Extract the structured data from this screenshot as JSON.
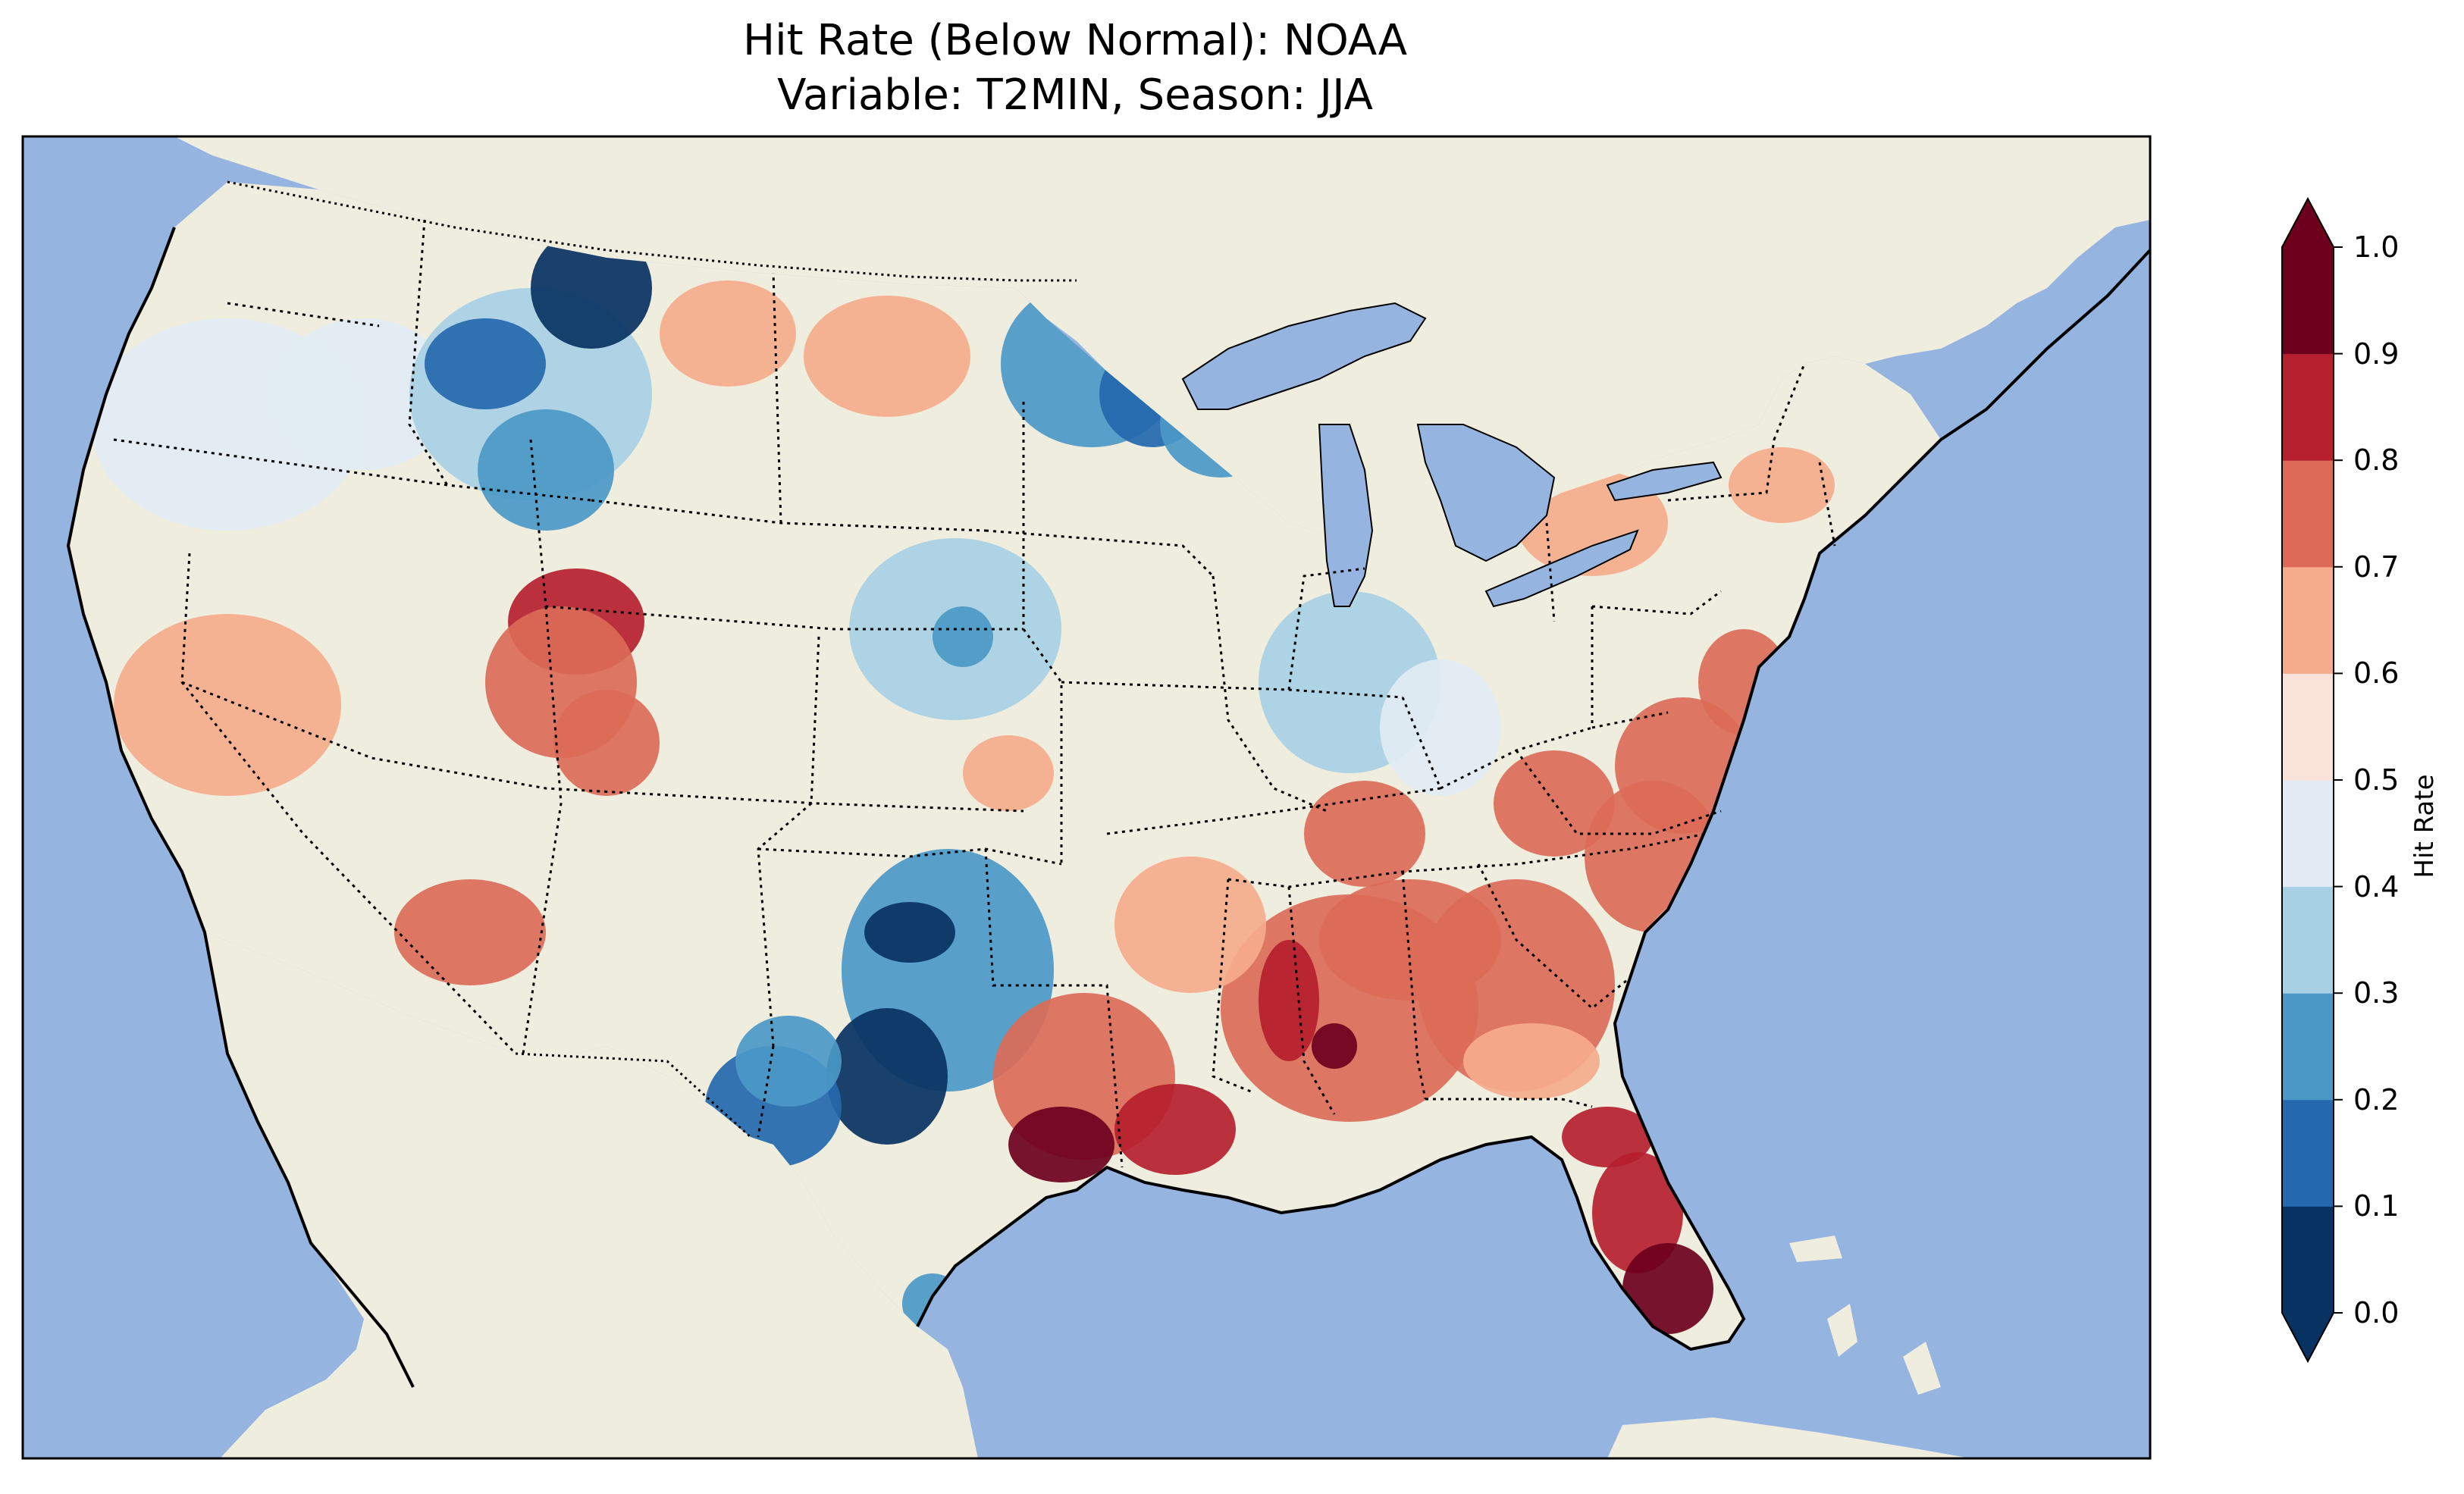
{
  "title": {
    "line1": "Hit Rate (Below Normal): NOAA",
    "line2": "Variable: T2MIN, Season: JJA"
  },
  "colors": {
    "ocean": "#96b4e0",
    "land": "#efedde",
    "coastline": "#000000",
    "state_border": "#000000"
  },
  "colorbar": {
    "label": "Hit Rate",
    "ticks": [
      "0.0",
      "0.1",
      "0.2",
      "0.3",
      "0.4",
      "0.5",
      "0.6",
      "0.7",
      "0.8",
      "0.9",
      "1.0"
    ],
    "bins": [
      {
        "range": [
          0.0,
          0.1
        ],
        "color": "#083262"
      },
      {
        "range": [
          0.1,
          0.2
        ],
        "color": "#2468ad"
      },
      {
        "range": [
          0.2,
          0.3
        ],
        "color": "#4b98c7"
      },
      {
        "range": [
          0.3,
          0.4
        ],
        "color": "#a8d0e4"
      },
      {
        "range": [
          0.4,
          0.5
        ],
        "color": "#e2ebf3"
      },
      {
        "range": [
          0.5,
          0.6
        ],
        "color": "#f9e3d9"
      },
      {
        "range": [
          0.6,
          0.7
        ],
        "color": "#f5ac8c"
      },
      {
        "range": [
          0.7,
          0.8
        ],
        "color": "#db6b57"
      },
      {
        "range": [
          0.8,
          0.9
        ],
        "color": "#b51f2e"
      },
      {
        "range": [
          0.9,
          1.0
        ],
        "color": "#6c001d"
      }
    ],
    "extend": "both"
  }
}
